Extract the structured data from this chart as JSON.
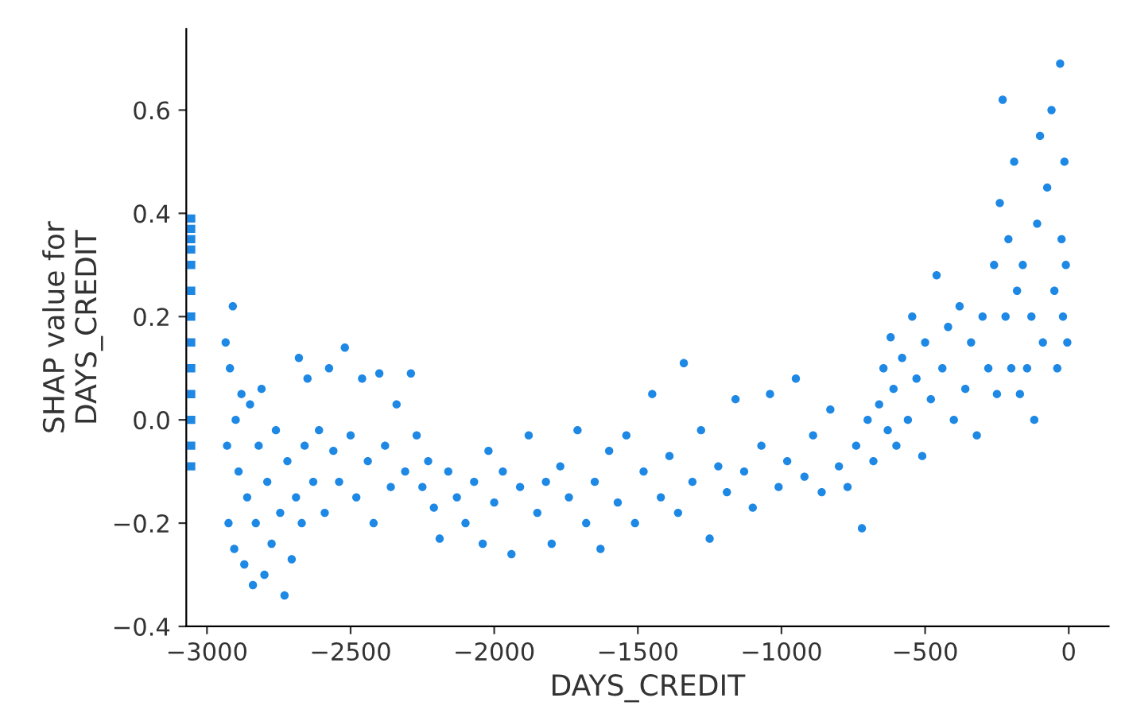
{
  "chart_data": {
    "type": "scatter",
    "xlabel": "DAYS_CREDIT",
    "ylabel": "SHAP value for\nDAYS_CREDIT",
    "xlim": [
      -3072,
      139
    ],
    "ylim": [
      -0.4,
      0.757
    ],
    "xticks": [
      {
        "value": -3000,
        "label": "−3000"
      },
      {
        "value": -2500,
        "label": "−2500"
      },
      {
        "value": -2000,
        "label": "−2000"
      },
      {
        "value": -1500,
        "label": "−1500"
      },
      {
        "value": -1000,
        "label": "−1000"
      },
      {
        "value": -500,
        "label": "−500"
      },
      {
        "value": 0,
        "label": "0"
      }
    ],
    "yticks": [
      {
        "value": -0.4,
        "label": "−0.4"
      },
      {
        "value": -0.2,
        "label": "−0.2"
      },
      {
        "value": 0.0,
        "label": "0.0"
      },
      {
        "value": 0.2,
        "label": "0.2"
      },
      {
        "value": 0.4,
        "label": "0.4"
      },
      {
        "value": 0.6,
        "label": "0.6"
      }
    ],
    "grid": false,
    "legend": false,
    "marker": "circle",
    "series": [
      {
        "color": "#1e88e5",
        "marker": "square",
        "x": [
          -3055,
          -3055,
          -3055,
          -3055,
          -3055,
          -3055,
          -3055,
          -3055,
          -3055,
          -3055,
          -3055,
          -3055,
          -3055
        ],
        "values": [
          -0.09,
          -0.05,
          0,
          0.05,
          0.1,
          0.15,
          0.2,
          0.25,
          0.3,
          0.33,
          0.35,
          0.37,
          0.39
        ]
      },
      {
        "color": "#1e88e5",
        "x": [
          -2935,
          -2930,
          -2925,
          -2920,
          -2910,
          -2905,
          -2900,
          -2890,
          -2880,
          -2870,
          -2860,
          -2850,
          -2840,
          -2830,
          -2820,
          -2810,
          -2800,
          -2790,
          -2775,
          -2760,
          -2745,
          -2730,
          -2720,
          -2705,
          -2690,
          -2680,
          -2670,
          -2660,
          -2650,
          -2630,
          -2610,
          -2590,
          -2575,
          -2560,
          -2540,
          -2520,
          -2500,
          -2480,
          -2460,
          -2440,
          -2420,
          -2400,
          -2380,
          -2360,
          -2340,
          -2310,
          -2290,
          -2270,
          -2250,
          -2230,
          -2210,
          -2190,
          -2160,
          -2130,
          -2100,
          -2070,
          -2040,
          -2020,
          -2000,
          -1970,
          -1940,
          -1910,
          -1880,
          -1850,
          -1820,
          -1800,
          -1770,
          -1740,
          -1710,
          -1680,
          -1650,
          -1630,
          -1600,
          -1570,
          -1540,
          -1510,
          -1480,
          -1450,
          -1420,
          -1390,
          -1360,
          -1340,
          -1310,
          -1280,
          -1250,
          -1220,
          -1190,
          -1160,
          -1130,
          -1100,
          -1070,
          -1040,
          -1010,
          -980,
          -950,
          -920,
          -890,
          -860,
          -830,
          -800,
          -770,
          -740,
          -720,
          -700,
          -680,
          -660,
          -645,
          -630,
          -620,
          -610,
          -600,
          -580,
          -560,
          -545,
          -530,
          -510,
          -500,
          -480,
          -460,
          -440,
          -420,
          -400,
          -380,
          -360,
          -340,
          -320,
          -300,
          -280,
          -260,
          -250,
          -240,
          -230,
          -220,
          -210,
          -200,
          -190,
          -180,
          -170,
          -160,
          -145,
          -130,
          -120,
          -110,
          -100,
          -90,
          -75,
          -60,
          -50,
          -40,
          -30,
          -25,
          -20,
          -15,
          -10,
          -5
        ],
        "values": [
          0.15,
          -0.05,
          -0.2,
          0.1,
          0.22,
          -0.25,
          0.0,
          -0.1,
          0.05,
          -0.28,
          -0.15,
          0.03,
          -0.32,
          -0.2,
          -0.05,
          0.06,
          -0.3,
          -0.12,
          -0.24,
          -0.02,
          -0.18,
          -0.34,
          -0.08,
          -0.27,
          -0.15,
          0.12,
          -0.2,
          -0.05,
          0.08,
          -0.12,
          -0.02,
          -0.18,
          0.1,
          -0.06,
          -0.12,
          0.14,
          -0.03,
          -0.15,
          0.08,
          -0.08,
          -0.2,
          0.09,
          -0.05,
          -0.13,
          0.03,
          -0.1,
          0.09,
          -0.03,
          -0.13,
          -0.08,
          -0.17,
          -0.23,
          -0.1,
          -0.15,
          -0.2,
          -0.12,
          -0.24,
          -0.06,
          -0.16,
          -0.1,
          -0.26,
          -0.13,
          -0.03,
          -0.18,
          -0.12,
          -0.24,
          -0.09,
          -0.15,
          -0.02,
          -0.2,
          -0.12,
          -0.25,
          -0.06,
          -0.16,
          -0.03,
          -0.2,
          -0.1,
          0.05,
          -0.15,
          -0.07,
          -0.18,
          0.11,
          -0.12,
          -0.02,
          -0.23,
          -0.09,
          -0.14,
          0.04,
          -0.1,
          -0.17,
          -0.05,
          0.05,
          -0.13,
          -0.08,
          0.08,
          -0.11,
          -0.03,
          -0.14,
          0.02,
          -0.09,
          -0.13,
          -0.05,
          -0.21,
          0.0,
          -0.08,
          0.03,
          0.1,
          -0.02,
          0.16,
          0.06,
          -0.05,
          0.12,
          0.0,
          0.2,
          0.08,
          -0.07,
          0.15,
          0.04,
          0.28,
          0.1,
          0.18,
          0.0,
          0.22,
          0.06,
          0.15,
          -0.03,
          0.2,
          0.1,
          0.3,
          0.05,
          0.42,
          0.62,
          0.2,
          0.35,
          0.1,
          0.5,
          0.25,
          0.05,
          0.3,
          0.1,
          0.2,
          0.0,
          0.38,
          0.55,
          0.15,
          0.45,
          0.6,
          0.25,
          0.1,
          0.69,
          0.35,
          0.2,
          0.5,
          0.3,
          0.15
        ]
      }
    ]
  }
}
